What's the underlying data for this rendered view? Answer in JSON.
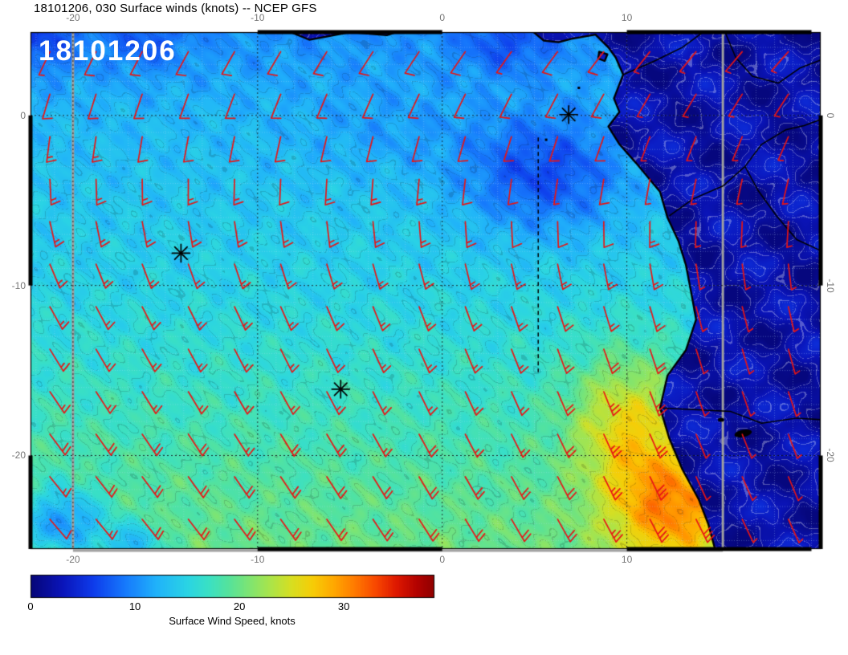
{
  "header": {
    "title": "18101206, 030 Surface winds (knots) -- NCEP GFS"
  },
  "map": {
    "stamp": "18101206",
    "axes": {
      "top": [
        {
          "label": "-20",
          "lon": -20
        },
        {
          "label": "-10",
          "lon": -10
        },
        {
          "label": "0",
          "lon": 0
        },
        {
          "label": "10",
          "lon": 10
        }
      ],
      "bottom": [
        {
          "label": "-20",
          "lon": -20
        },
        {
          "label": "-10",
          "lon": -10
        },
        {
          "label": "0",
          "lon": 0
        },
        {
          "label": "10",
          "lon": 10
        }
      ],
      "left": [
        {
          "label": "0",
          "lat": 0
        },
        {
          "label": "-10",
          "lat": -10
        },
        {
          "label": "-20",
          "lat": -20
        }
      ],
      "right": [
        {
          "label": "0",
          "lat": 0
        },
        {
          "label": "-10",
          "lat": -10
        },
        {
          "label": "-20",
          "lat": -20
        }
      ]
    },
    "markers": [
      {
        "lon": 6.85,
        "lat": 0.05
      },
      {
        "lon": -14.15,
        "lat": -8.1
      },
      {
        "lon": -5.5,
        "lat": -16.1
      }
    ]
  },
  "colorbar": {
    "caption": "Surface Wind Speed, knots",
    "ticks": [
      {
        "label": "0",
        "value": 0
      },
      {
        "label": "10",
        "value": 10
      },
      {
        "label": "20",
        "value": 20
      },
      {
        "label": "30",
        "value": 30
      }
    ]
  },
  "colors": {
    "barb": "#e81515",
    "stamp": "#ffffff",
    "tick_label": "#777777",
    "title": "#000000",
    "coast": "#000000",
    "domain_box": "#a0a0a0"
  },
  "chart_data": {
    "type": "heatmap",
    "variable": "Surface winds (knots)",
    "source": "NCEP GFS",
    "init": "18101206",
    "forecast_hour": "030",
    "lon_range": [
      -22.3,
      20.5
    ],
    "lat_range": [
      -25.5,
      4.9
    ],
    "lon_ticks": [
      -20,
      -10,
      0,
      10
    ],
    "lat_ticks": [
      0,
      -10,
      -20
    ],
    "graticule_interval_deg": 10,
    "fine_grid_interval_deg": 1,
    "colorbar": {
      "label": "Surface Wind Speed, knots",
      "range": [
        0,
        38.6
      ],
      "tick_values": [
        0,
        10,
        20,
        30
      ],
      "stops": [
        [
          0,
          6,
          6,
          120
        ],
        [
          3,
          10,
          20,
          185
        ],
        [
          6,
          14,
          60,
          235
        ],
        [
          9,
          22,
          120,
          252
        ],
        [
          12,
          32,
          178,
          250
        ],
        [
          15,
          42,
          212,
          228
        ],
        [
          17,
          58,
          224,
          196
        ],
        [
          19,
          86,
          226,
          155
        ],
        [
          21,
          128,
          228,
          112
        ],
        [
          23,
          172,
          228,
          72
        ],
        [
          25,
          216,
          222,
          32
        ],
        [
          27,
          247,
          204,
          6
        ],
        [
          29,
          255,
          168,
          0
        ],
        [
          31,
          255,
          122,
          0
        ],
        [
          33,
          248,
          72,
          0
        ],
        [
          35,
          222,
          24,
          0
        ],
        [
          37,
          178,
          2,
          0
        ],
        [
          39,
          135,
          0,
          0
        ]
      ]
    },
    "wind_field": {
      "units": "knots",
      "barb_grid": {
        "lon_start": -21.25,
        "lat_start": 3.75,
        "step_deg": 2.5,
        "cols": 17,
        "rows": 12
      },
      "base_speed_by_lat": [
        [
          -25.5,
          19.9
        ],
        [
          -20,
          18.2
        ],
        [
          -10,
          14.8
        ],
        [
          0,
          12.5
        ],
        [
          4.9,
          10.2
        ]
      ],
      "anomalies": [
        {
          "lon": 5.5,
          "lat": -3.5,
          "amp": -6.5,
          "slon": 4.5,
          "slat": 3.5
        },
        {
          "lon": -22.0,
          "lat": 4.5,
          "amp": -4.0,
          "slon": 2.5,
          "slat": 2.0
        },
        {
          "lon": -20.5,
          "lat": -24.0,
          "amp": -9.0,
          "slon": 2.2,
          "slat": 2.0
        },
        {
          "lon": -16.8,
          "lat": -25.3,
          "amp": -7.0,
          "slon": 1.6,
          "slat": 1.3
        },
        {
          "lon": 10.0,
          "lat": -18.0,
          "amp": 8.0,
          "slon": 3.0,
          "slat": 4.0
        },
        {
          "lon": 12.5,
          "lat": -23.0,
          "amp": 11.0,
          "slon": 3.5,
          "slat": 3.5
        },
        {
          "lon": 3.5,
          "lat": 4.2,
          "amp": -3.5,
          "slon": 2.5,
          "slat": 1.8
        },
        {
          "lon": -16.0,
          "lat": 4.2,
          "amp": -3.0,
          "slon": 2.0,
          "slat": 1.5
        },
        {
          "lon": -3.0,
          "lat": -1.0,
          "amp": -1.5,
          "slon": 5.0,
          "slat": 2.5
        }
      ],
      "direction_from_by_lat": [
        [
          -25.5,
          146
        ],
        [
          -20,
          150
        ],
        [
          -10,
          160
        ],
        [
          0,
          200
        ],
        [
          4.9,
          217
        ]
      ],
      "dir_lon_coeff": 0.4,
      "land_mean_speed": 2.2
    },
    "markers_lonlat": [
      [
        6.85,
        0.05
      ],
      [
        -14.15,
        -8.1
      ],
      [
        -5.5,
        -16.1
      ]
    ],
    "section_line": {
      "lon": 5.2,
      "lat_from": -1.3,
      "lat_to": -15.1
    },
    "domain_box_lons": [
      -20,
      15.2
    ]
  }
}
